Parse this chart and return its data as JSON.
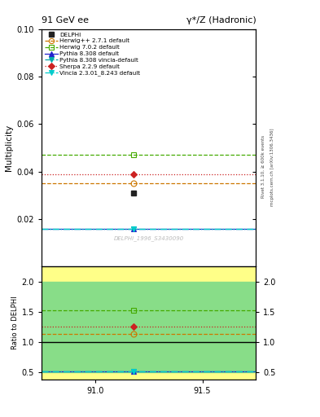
{
  "title_left": "91 GeV ee",
  "title_right": "γ*/Z (Hadronic)",
  "ylabel_main": "Multiplicity",
  "ylabel_ratio": "Ratio to DELPHI",
  "watermark": "DELPHI_1996_S3430090",
  "rivet_label": "Rivet 3.1.10, ≥ 600k events",
  "mcplots_label": "mcplots.cern.ch [arXiv:1306.3436]",
  "xlim": [
    90.75,
    91.75
  ],
  "xticks": [
    91.0,
    91.5
  ],
  "ylim_main": [
    0.0,
    0.1
  ],
  "yticks_main": [
    0.02,
    0.04,
    0.06,
    0.08,
    0.1
  ],
  "ylim_ratio": [
    0.38,
    2.25
  ],
  "yticks_ratio": [
    0.5,
    1.0,
    1.5,
    2.0
  ],
  "x_data": 91.18,
  "delphi_val": 0.031,
  "delphi_color": "#222222",
  "series": [
    {
      "label": "DELPHI",
      "value": 0.031,
      "ratio": 1.0,
      "color": "#222222",
      "marker": "s",
      "markersize": 5,
      "linestyle": "none",
      "line_color": "none",
      "line_y": null,
      "open": false
    },
    {
      "label": "Herwig++ 2.7.1 default",
      "value": 0.0352,
      "ratio": 1.135,
      "color": "#cc7700",
      "marker": "o",
      "markersize": 5,
      "linestyle": "--",
      "line_color": "#cc7700",
      "line_y": 0.0352,
      "open": true
    },
    {
      "label": "Herwig 7.0.2 default",
      "value": 0.0472,
      "ratio": 1.523,
      "color": "#44aa00",
      "marker": "s",
      "markersize": 5,
      "linestyle": "--",
      "line_color": "#44aa00",
      "line_y": 0.0472,
      "open": true
    },
    {
      "label": "Pythia 8.308 default",
      "value": 0.0158,
      "ratio": 0.51,
      "color": "#2222cc",
      "marker": "^",
      "markersize": 5,
      "linestyle": "-",
      "line_color": "#2222cc",
      "line_y": 0.0158,
      "open": false
    },
    {
      "label": "Pythia 8.308 vincia-default",
      "value": 0.0158,
      "ratio": 0.51,
      "color": "#00aaaa",
      "marker": "v",
      "markersize": 5,
      "linestyle": "-.",
      "line_color": "#00aaaa",
      "line_y": 0.0158,
      "open": false
    },
    {
      "label": "Sherpa 2.2.9 default",
      "value": 0.039,
      "ratio": 1.258,
      "color": "#cc2222",
      "marker": "D",
      "markersize": 4,
      "linestyle": ":",
      "line_color": "#cc2222",
      "line_y": 0.039,
      "open": false
    },
    {
      "label": "Vincia 2.3.01_8.243 default",
      "value": 0.0158,
      "ratio": 0.51,
      "color": "#00cccc",
      "marker": "v",
      "markersize": 5,
      "linestyle": "-.",
      "line_color": "#00cccc",
      "line_y": 0.0158,
      "open": false
    }
  ],
  "yellow_lo": 0.38,
  "yellow_hi": 2.25,
  "green_lo": 0.5,
  "green_hi": 2.0,
  "bg_color": "#ffffff"
}
